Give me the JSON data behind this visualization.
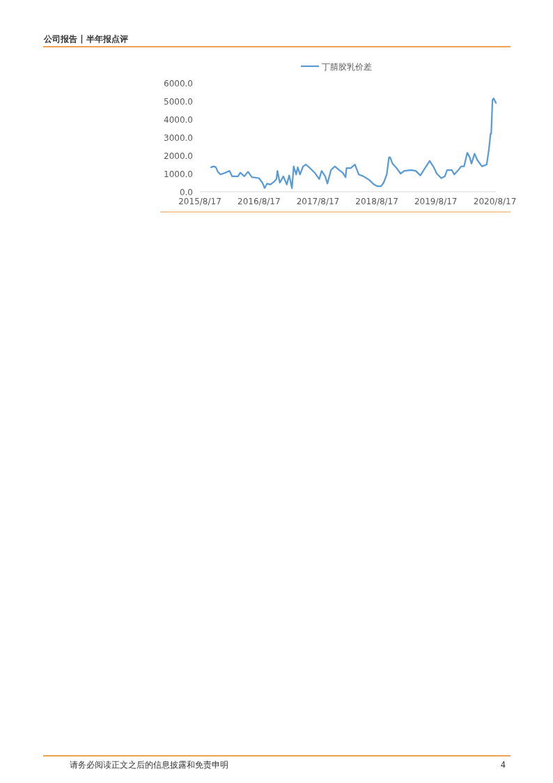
{
  "chart_data": {
    "type": "line",
    "annotations": [
      "公司报告 | 半年报点评",
      "请务必阅读正文之后的信息披露和免责申明",
      "4"
    ],
    "x": [
      "2015-10-26",
      "2015-11-10",
      "2015-11-24",
      "2015-12-06",
      "2015-12-23",
      "2016-01-21",
      "2016-02-16",
      "2016-03-04",
      "2016-04-09",
      "2016-04-23",
      "2016-05-18",
      "2016-06-10",
      "2016-07-04",
      "2016-08-17",
      "2016-09-07",
      "2016-09-21",
      "2016-10-06",
      "2016-10-27",
      "2016-11-18",
      "2016-12-03",
      "2016-12-09",
      "2016-12-24",
      "2017-01-15",
      "2017-02-05",
      "2017-02-20",
      "2017-03-09",
      "2017-03-20",
      "2017-04-04",
      "2017-04-14",
      "2017-04-28",
      "2017-05-17",
      "2017-06-04",
      "2017-06-29",
      "2017-07-28",
      "2017-08-25",
      "2017-09-09",
      "2017-10-01",
      "2017-10-15",
      "2017-11-06",
      "2017-11-30",
      "2017-12-26",
      "2018-01-17",
      "2018-02-04",
      "2018-02-10",
      "2018-03-08",
      "2018-04-03",
      "2018-04-27",
      "2018-05-26",
      "2018-07-01",
      "2018-07-30",
      "2018-08-21",
      "2018-09-11",
      "2018-09-28",
      "2018-10-17",
      "2018-10-31",
      "2018-11-07",
      "2018-11-22",
      "2018-12-13",
      "2019-01-11",
      "2019-02-02",
      "2019-03-17",
      "2019-04-15",
      "2019-05-13",
      "2019-06-11",
      "2019-07-10",
      "2019-08-01",
      "2019-08-23",
      "2019-09-20",
      "2019-10-12",
      "2019-10-26",
      "2019-11-24",
      "2019-12-09",
      "2019-12-30",
      "2020-01-21",
      "2020-02-08",
      "2020-02-28",
      "2020-03-14",
      "2020-03-25",
      "2020-04-13",
      "2020-04-30",
      "2020-05-29",
      "2020-06-27",
      "2020-07-11",
      "2020-07-21",
      "2020-07-25",
      "2020-08-02",
      "2020-08-09",
      "2020-08-23"
    ],
    "series": [
      {
        "name": "丁腈胶乳价差",
        "color": "#5b9bd5",
        "values": [
          1350,
          1400,
          1350,
          1100,
          950,
          1050,
          1150,
          850,
          850,
          1050,
          850,
          1100,
          800,
          750,
          500,
          200,
          450,
          400,
          550,
          700,
          1150,
          500,
          850,
          400,
          900,
          200,
          1400,
          950,
          1350,
          950,
          1400,
          1500,
          1300,
          1050,
          700,
          1150,
          850,
          450,
          1200,
          1400,
          1200,
          1050,
          800,
          1300,
          1300,
          1500,
          950,
          850,
          650,
          400,
          300,
          300,
          500,
          950,
          1900,
          1900,
          1550,
          1350,
          1000,
          1150,
          1200,
          1150,
          900,
          1300,
          1700,
          1400,
          1000,
          750,
          850,
          1200,
          1200,
          950,
          1150,
          1400,
          1400,
          2150,
          1900,
          1550,
          2100,
          1750,
          1400,
          1500,
          2350,
          3200,
          3200,
          5050,
          5150,
          4900
        ]
      }
    ],
    "xlim": [
      "2015-08-17",
      "2020-08-23"
    ],
    "xticks": [
      {
        "value": "2015-08-17",
        "label": "2015/8/17"
      },
      {
        "value": "2016-08-17",
        "label": "2016/8/17"
      },
      {
        "value": "2017-08-17",
        "label": "2017/8/17"
      },
      {
        "value": "2018-08-17",
        "label": "2018/8/17"
      },
      {
        "value": "2019-08-17",
        "label": "2019/8/17"
      },
      {
        "value": "2020-08-17",
        "label": "2020/8/17"
      }
    ],
    "ylim": [
      0,
      6000
    ],
    "yticks": [
      {
        "value": 0,
        "label": "0.0"
      },
      {
        "value": 1000,
        "label": "1000.0"
      },
      {
        "value": 2000,
        "label": "2000.0"
      },
      {
        "value": 3000,
        "label": "3000.0"
      },
      {
        "value": 4000,
        "label": "4000.0"
      },
      {
        "value": 5000,
        "label": "5000.0"
      },
      {
        "value": 6000,
        "label": "6000.0"
      }
    ],
    "grid": false,
    "legend": "top",
    "marker": "none",
    "line_style": "solid"
  }
}
